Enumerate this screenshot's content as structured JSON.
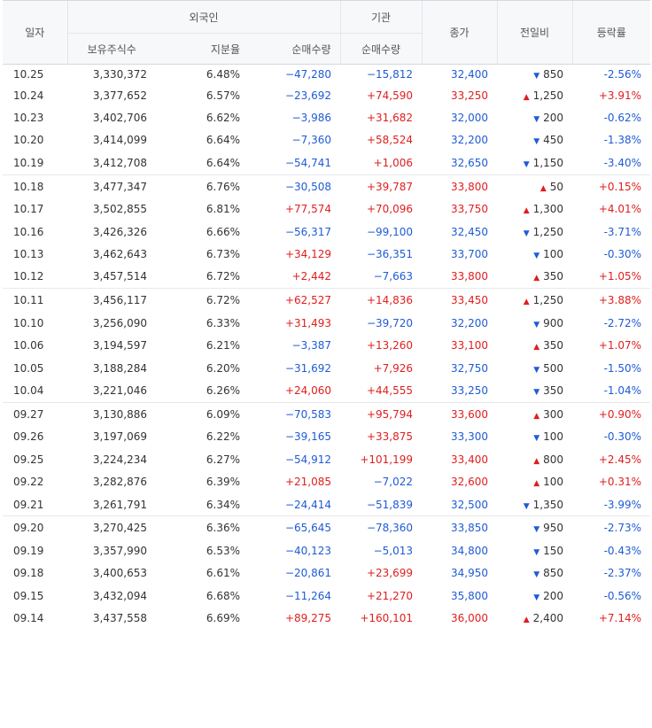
{
  "header": {
    "date": "일자",
    "foreign": "외국인",
    "institution": "기관",
    "holdings": "보유주식수",
    "share_ratio": "지분율",
    "foreign_net": "순매수량",
    "inst_net": "순매수량",
    "close": "종가",
    "change": "전일비",
    "rate": "등락률"
  },
  "colors": {
    "up": "#e01e1e",
    "down": "#1f5bd6"
  },
  "groups": [
    [
      {
        "date": "10.25",
        "holdings": "3,330,372",
        "ratio": "6.48%",
        "foreign": "−47,280",
        "inst": "−15,812",
        "close": "32,400",
        "change": "850",
        "dir": "down",
        "rate": "-2.56%"
      },
      {
        "date": "10.24",
        "holdings": "3,377,652",
        "ratio": "6.57%",
        "foreign": "−23,692",
        "inst": "+74,590",
        "close": "33,250",
        "change": "1,250",
        "dir": "up",
        "rate": "+3.91%"
      },
      {
        "date": "10.23",
        "holdings": "3,402,706",
        "ratio": "6.62%",
        "foreign": "−3,986",
        "inst": "+31,682",
        "close": "32,000",
        "change": "200",
        "dir": "down",
        "rate": "-0.62%"
      },
      {
        "date": "10.20",
        "holdings": "3,414,099",
        "ratio": "6.64%",
        "foreign": "−7,360",
        "inst": "+58,524",
        "close": "32,200",
        "change": "450",
        "dir": "down",
        "rate": "-1.38%"
      },
      {
        "date": "10.19",
        "holdings": "3,412,708",
        "ratio": "6.64%",
        "foreign": "−54,741",
        "inst": "+1,006",
        "close": "32,650",
        "change": "1,150",
        "dir": "down",
        "rate": "-3.40%"
      }
    ],
    [
      {
        "date": "10.18",
        "holdings": "3,477,347",
        "ratio": "6.76%",
        "foreign": "−30,508",
        "inst": "+39,787",
        "close": "33,800",
        "change": "50",
        "dir": "up",
        "rate": "+0.15%"
      },
      {
        "date": "10.17",
        "holdings": "3,502,855",
        "ratio": "6.81%",
        "foreign": "+77,574",
        "inst": "+70,096",
        "close": "33,750",
        "change": "1,300",
        "dir": "up",
        "rate": "+4.01%"
      },
      {
        "date": "10.16",
        "holdings": "3,426,326",
        "ratio": "6.66%",
        "foreign": "−56,317",
        "inst": "−99,100",
        "close": "32,450",
        "change": "1,250",
        "dir": "down",
        "rate": "-3.71%"
      },
      {
        "date": "10.13",
        "holdings": "3,462,643",
        "ratio": "6.73%",
        "foreign": "+34,129",
        "inst": "−36,351",
        "close": "33,700",
        "change": "100",
        "dir": "down",
        "rate": "-0.30%"
      },
      {
        "date": "10.12",
        "holdings": "3,457,514",
        "ratio": "6.72%",
        "foreign": "+2,442",
        "inst": "−7,663",
        "close": "33,800",
        "change": "350",
        "dir": "up",
        "rate": "+1.05%"
      }
    ],
    [
      {
        "date": "10.11",
        "holdings": "3,456,117",
        "ratio": "6.72%",
        "foreign": "+62,527",
        "inst": "+14,836",
        "close": "33,450",
        "change": "1,250",
        "dir": "up",
        "rate": "+3.88%"
      },
      {
        "date": "10.10",
        "holdings": "3,256,090",
        "ratio": "6.33%",
        "foreign": "+31,493",
        "inst": "−39,720",
        "close": "32,200",
        "change": "900",
        "dir": "down",
        "rate": "-2.72%"
      },
      {
        "date": "10.06",
        "holdings": "3,194,597",
        "ratio": "6.21%",
        "foreign": "−3,387",
        "inst": "+13,260",
        "close": "33,100",
        "change": "350",
        "dir": "up",
        "rate": "+1.07%"
      },
      {
        "date": "10.05",
        "holdings": "3,188,284",
        "ratio": "6.20%",
        "foreign": "−31,692",
        "inst": "+7,926",
        "close": "32,750",
        "change": "500",
        "dir": "down",
        "rate": "-1.50%"
      },
      {
        "date": "10.04",
        "holdings": "3,221,046",
        "ratio": "6.26%",
        "foreign": "+24,060",
        "inst": "+44,555",
        "close": "33,250",
        "change": "350",
        "dir": "down",
        "rate": "-1.04%"
      }
    ],
    [
      {
        "date": "09.27",
        "holdings": "3,130,886",
        "ratio": "6.09%",
        "foreign": "−70,583",
        "inst": "+95,794",
        "close": "33,600",
        "change": "300",
        "dir": "up",
        "rate": "+0.90%"
      },
      {
        "date": "09.26",
        "holdings": "3,197,069",
        "ratio": "6.22%",
        "foreign": "−39,165",
        "inst": "+33,875",
        "close": "33,300",
        "change": "100",
        "dir": "down",
        "rate": "-0.30%"
      },
      {
        "date": "09.25",
        "holdings": "3,224,234",
        "ratio": "6.27%",
        "foreign": "−54,912",
        "inst": "+101,199",
        "close": "33,400",
        "change": "800",
        "dir": "up",
        "rate": "+2.45%"
      },
      {
        "date": "09.22",
        "holdings": "3,282,876",
        "ratio": "6.39%",
        "foreign": "+21,085",
        "inst": "−7,022",
        "close": "32,600",
        "change": "100",
        "dir": "up",
        "rate": "+0.31%"
      },
      {
        "date": "09.21",
        "holdings": "3,261,791",
        "ratio": "6.34%",
        "foreign": "−24,414",
        "inst": "−51,839",
        "close": "32,500",
        "change": "1,350",
        "dir": "down",
        "rate": "-3.99%"
      }
    ],
    [
      {
        "date": "09.20",
        "holdings": "3,270,425",
        "ratio": "6.36%",
        "foreign": "−65,645",
        "inst": "−78,360",
        "close": "33,850",
        "change": "950",
        "dir": "down",
        "rate": "-2.73%"
      },
      {
        "date": "09.19",
        "holdings": "3,357,990",
        "ratio": "6.53%",
        "foreign": "−40,123",
        "inst": "−5,013",
        "close": "34,800",
        "change": "150",
        "dir": "down",
        "rate": "-0.43%"
      },
      {
        "date": "09.18",
        "holdings": "3,400,653",
        "ratio": "6.61%",
        "foreign": "−20,861",
        "inst": "+23,699",
        "close": "34,950",
        "change": "850",
        "dir": "down",
        "rate": "-2.37%"
      },
      {
        "date": "09.15",
        "holdings": "3,432,094",
        "ratio": "6.68%",
        "foreign": "−11,264",
        "inst": "+21,270",
        "close": "35,800",
        "change": "200",
        "dir": "down",
        "rate": "-0.56%"
      },
      {
        "date": "09.14",
        "holdings": "3,437,558",
        "ratio": "6.69%",
        "foreign": "+89,275",
        "inst": "+160,101",
        "close": "36,000",
        "change": "2,400",
        "dir": "up",
        "rate": "+7.14%"
      }
    ]
  ]
}
